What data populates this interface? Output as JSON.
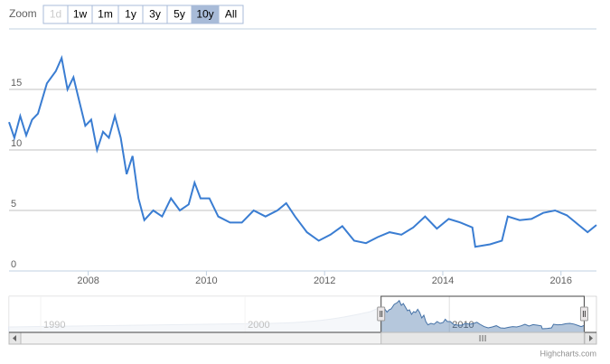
{
  "range_selector": {
    "label": "Zoom",
    "buttons": [
      "1d",
      "1w",
      "1m",
      "1y",
      "3y",
      "5y",
      "10y",
      "All"
    ],
    "selected": 6,
    "disabled": [
      0
    ]
  },
  "chart_data": {
    "type": "line",
    "color": "#3a7dd2",
    "x": [
      2006.66,
      2006.75,
      2006.85,
      2006.95,
      2007.05,
      2007.15,
      2007.3,
      2007.45,
      2007.55,
      2007.65,
      2007.75,
      2007.85,
      2007.95,
      2008.05,
      2008.15,
      2008.25,
      2008.35,
      2008.45,
      2008.55,
      2008.65,
      2008.75,
      2008.85,
      2008.95,
      2009.1,
      2009.25,
      2009.4,
      2009.55,
      2009.7,
      2009.8,
      2009.9,
      2010.05,
      2010.2,
      2010.4,
      2010.6,
      2010.8,
      2011.0,
      2011.2,
      2011.35,
      2011.5,
      2011.7,
      2011.9,
      2012.1,
      2012.3,
      2012.5,
      2012.7,
      2012.9,
      2013.1,
      2013.3,
      2013.5,
      2013.7,
      2013.9,
      2014.1,
      2014.3,
      2014.5,
      2014.55,
      2014.8,
      2015.0,
      2015.1,
      2015.3,
      2015.5,
      2015.7,
      2015.9,
      2016.1,
      2016.3,
      2016.45,
      2016.6
    ],
    "values": [
      12.3,
      11.0,
      12.8,
      11.2,
      12.5,
      13.0,
      15.5,
      16.5,
      17.6,
      15.0,
      16.0,
      14.0,
      12.0,
      12.5,
      10.0,
      11.5,
      11.0,
      12.8,
      11.0,
      8.0,
      9.5,
      6.0,
      4.2,
      5.0,
      4.5,
      6.0,
      5.0,
      5.5,
      7.3,
      6.0,
      6.0,
      4.5,
      4.0,
      4.0,
      5.0,
      4.5,
      5.0,
      5.6,
      4.5,
      3.2,
      2.5,
      3.0,
      3.7,
      2.5,
      2.3,
      2.8,
      3.2,
      3.0,
      3.6,
      4.5,
      3.5,
      4.3,
      4.0,
      3.6,
      2.0,
      2.2,
      2.5,
      4.5,
      4.2,
      4.3,
      4.8,
      5.0,
      4.6,
      3.8,
      3.2,
      3.8
    ],
    "xlim": [
      2006.66,
      2016.6
    ],
    "xticks": [
      2008,
      2010,
      2012,
      2014,
      2016
    ],
    "ylim": [
      0,
      20
    ],
    "yticks": [
      0,
      5,
      10,
      15
    ],
    "grid": true,
    "navigator": {
      "xlim": [
        1988.45,
        2017.2
      ],
      "xticks": [
        1990,
        2000,
        2010
      ]
    },
    "credits": "Highcharts.com"
  }
}
